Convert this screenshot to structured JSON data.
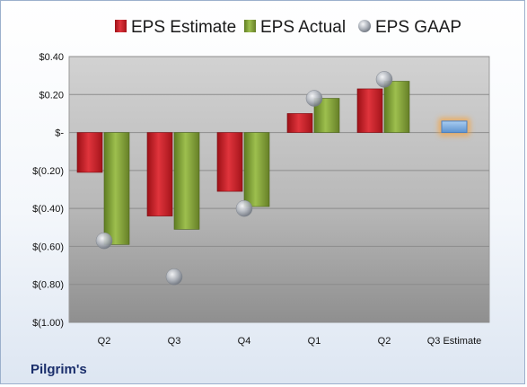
{
  "company_label": "Pilgrim's",
  "colors": {
    "estimate": "#c8202a",
    "actual": "#86a83a",
    "gaap": "#a8adb6",
    "future_estimate": "#7aaedf",
    "future_glow": "#f3a64a"
  },
  "chart_data": {
    "type": "bar",
    "categories": [
      "Q2",
      "Q3",
      "Q4",
      "Q1",
      "Q2",
      "Q3 Estimate"
    ],
    "series": [
      {
        "name": "EPS Estimate",
        "values": [
          -0.21,
          -0.44,
          -0.31,
          0.1,
          0.23,
          null
        ]
      },
      {
        "name": "EPS Actual",
        "values": [
          -0.59,
          -0.51,
          -0.39,
          0.18,
          0.27,
          0.06
        ]
      },
      {
        "name": "EPS GAAP",
        "marker": "sphere",
        "values": [
          -0.57,
          -0.76,
          -0.4,
          0.18,
          0.28,
          null
        ]
      }
    ],
    "ylim": [
      -1.0,
      0.4
    ],
    "yticks": [
      0.4,
      0.2,
      0.0,
      -0.2,
      -0.4,
      -0.6,
      -0.8,
      -1.0
    ],
    "ytick_labels": [
      "$0.40",
      "$0.20",
      "$-",
      "$(0.20)",
      "$(0.40)",
      "$(0.60)",
      "$(0.80)",
      "$(1.00)"
    ],
    "grid": true,
    "legend_position": "top"
  }
}
